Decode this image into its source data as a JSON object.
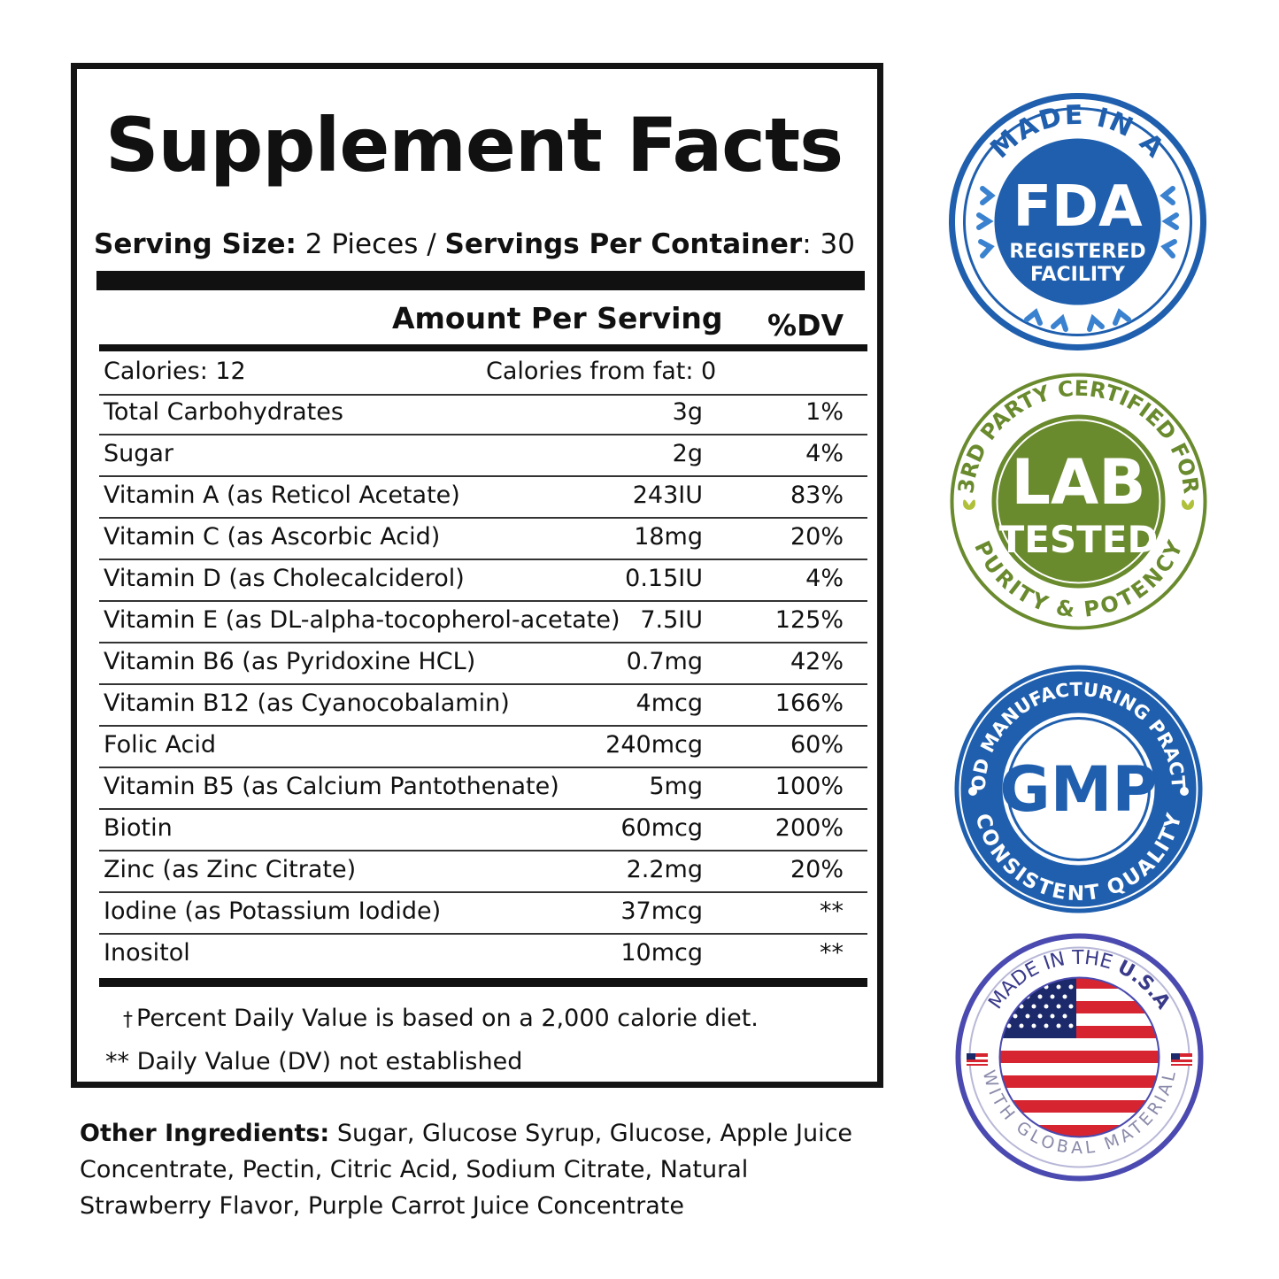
{
  "facts": {
    "title": "Supplement Facts",
    "serving_size_label": "Serving Size:",
    "serving_size_value": " 2 Pieces / ",
    "servings_per_container_label": "Servings Per Container",
    "servings_per_container_value": ": 30",
    "header_amount": "Amount Per Serving",
    "header_dv": "%DV",
    "calories": "Calories: 12",
    "calories_from_fat": "Calories from fat: 0",
    "rows": [
      {
        "name": "Total Carbohydrates",
        "amount": "3g",
        "dv": "1%"
      },
      {
        "name": "Sugar",
        "amount": "2g",
        "dv": "4%"
      },
      {
        "name": "Vitamin A (as Reticol Acetate)",
        "amount": "243IU",
        "dv": "83%"
      },
      {
        "name": "Vitamin C (as Ascorbic Acid)",
        "amount": "18mg",
        "dv": "20%"
      },
      {
        "name": "Vitamin D (as Cholecalciderol)",
        "amount": "0.15IU",
        "dv": "4%"
      },
      {
        "name": "Vitamin E (as DL-alpha-tocopherol-acetate)",
        "amount": "7.5IU",
        "dv": "125%"
      },
      {
        "name": "Vitamin B6 (as Pyridoxine HCL)",
        "amount": "0.7mg",
        "dv": "42%"
      },
      {
        "name": "Vitamin B12 (as Cyanocobalamin)",
        "amount": "4mcg",
        "dv": "166%"
      },
      {
        "name": "Folic Acid",
        "amount": "240mcg",
        "dv": "60%"
      },
      {
        "name": "Vitamin B5 (as Calcium Pantothenate)",
        "amount": "5mg",
        "dv": "100%"
      },
      {
        "name": "Biotin",
        "amount": "60mcg",
        "dv": "200%"
      },
      {
        "name": "Zinc (as Zinc Citrate)",
        "amount": "2.2mg",
        "dv": "20%"
      },
      {
        "name": "Iodine (as Potassium Iodide)",
        "amount": "37mcg",
        "dv": "**"
      },
      {
        "name": "Inositol",
        "amount": "10mcg",
        "dv": "**"
      }
    ],
    "footnote_dagger": "†",
    "footnote_1": "Percent Daily Value is based on a 2,000 calorie diet.",
    "footnote_2": "** Daily Value (DV) not established"
  },
  "other_ingredients": {
    "label": "Other Ingredients:",
    "text": " Sugar, Glucose Syrup, Glucose, Apple Juice Concentrate, Pectin, Citric Acid, Sodium Citrate, Natural Strawberry Flavor, Purple Carrot Juice Concentrate"
  },
  "badges": {
    "fda": {
      "top": "MADE IN A",
      "main": "FDA",
      "line1": "REGISTERED",
      "line2": "FACILITY",
      "color": "#1f5fae"
    },
    "lab": {
      "ring": "3RD PARTY CERTIFIED FOR",
      "ring_bottom": "PURITY & POTENCY",
      "main1": "LAB",
      "main2": "TESTED",
      "color": "#6a8a2e"
    },
    "gmp": {
      "ring": "GOOD MANUFACTURING PRACTICE",
      "ring_bottom": "CONSISTENT QUALITY",
      "main": "GMP",
      "color": "#1f5fae"
    },
    "usa": {
      "top_a": "MADE IN THE ",
      "top_b": "U.S.A",
      "bottom": "WITH GLOBAL MATERIAL",
      "color": "#4a4ab0"
    }
  },
  "colors": {
    "ink": "#111111",
    "fda_blue": "#1f5fae",
    "lab_green": "#6a8a2e",
    "flag_red": "#d62430",
    "flag_blue": "#1c2a6b"
  }
}
